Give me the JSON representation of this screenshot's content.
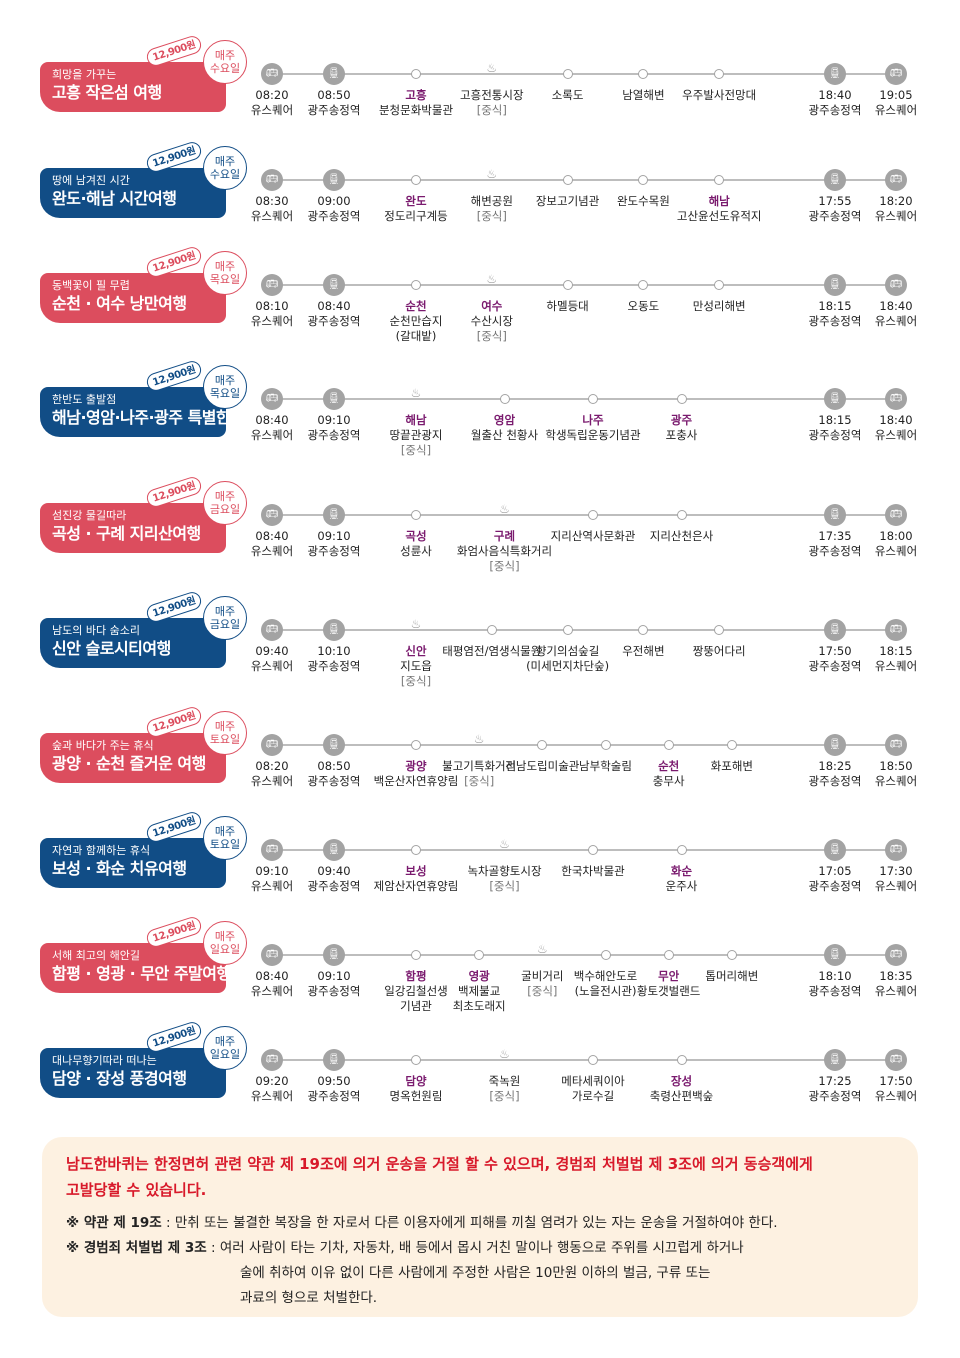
{
  "tours": [
    {
      "theme": "red",
      "subtitle": "희망을 가꾸는",
      "title": "고흥 작은섬 여행",
      "price": "12,900원",
      "day": [
        "매주",
        "수요일"
      ],
      "stops": [
        {
          "type": "bus",
          "lines": [
            "08:20",
            "유스퀘어"
          ]
        },
        {
          "type": "train",
          "lines": [
            "08:50",
            "광주송정역"
          ]
        },
        {
          "type": "dot",
          "highlight": "고흥",
          "lines": [
            "분청문화박물관"
          ]
        },
        {
          "type": "meal",
          "lines": [
            "고흥전통시장"
          ],
          "lunch": "[중식]"
        },
        {
          "type": "dot",
          "lines": [
            "소록도"
          ]
        },
        {
          "type": "dot",
          "lines": [
            "남열해변"
          ]
        },
        {
          "type": "dot",
          "lines": [
            "우주발사전망대"
          ]
        },
        {
          "type": "train",
          "lines": [
            "18:40",
            "광주송정역"
          ]
        },
        {
          "type": "bus",
          "lines": [
            "19:05",
            "유스퀘어"
          ]
        }
      ]
    },
    {
      "theme": "blue",
      "subtitle": "땅에 남겨진 시간",
      "title": "완도·해남 시간여행",
      "price": "12,900원",
      "day": [
        "매주",
        "수요일"
      ],
      "stops": [
        {
          "type": "bus",
          "lines": [
            "08:30",
            "유스퀘어"
          ]
        },
        {
          "type": "train",
          "lines": [
            "09:00",
            "광주송정역"
          ]
        },
        {
          "type": "dot",
          "highlight": "완도",
          "lines": [
            "정도리구계등"
          ]
        },
        {
          "type": "meal",
          "lines": [
            "해변공원"
          ],
          "lunch": "[중식]"
        },
        {
          "type": "dot",
          "lines": [
            "장보고기념관"
          ]
        },
        {
          "type": "dot",
          "lines": [
            "완도수목원"
          ]
        },
        {
          "type": "dot",
          "highlight": "해남",
          "lines": [
            "고산윤선도유적지"
          ]
        },
        {
          "type": "train",
          "lines": [
            "17:55",
            "광주송정역"
          ]
        },
        {
          "type": "bus",
          "lines": [
            "18:20",
            "유스퀘어"
          ]
        }
      ]
    },
    {
      "theme": "red",
      "subtitle": "동백꽃이 필 무렵",
      "title": "순천 · 여수 낭만여행",
      "price": "12,900원",
      "day": [
        "매주",
        "목요일"
      ],
      "stops": [
        {
          "type": "bus",
          "lines": [
            "08:10",
            "유스퀘어"
          ]
        },
        {
          "type": "train",
          "lines": [
            "08:40",
            "광주송정역"
          ]
        },
        {
          "type": "dot",
          "highlight": "순천",
          "lines": [
            "순천만습지",
            "(갈대밭)"
          ]
        },
        {
          "type": "meal",
          "highlight": "여수",
          "lines": [
            "수산시장"
          ],
          "lunch": "[중식]"
        },
        {
          "type": "dot",
          "lines": [
            "하멜등대"
          ]
        },
        {
          "type": "dot",
          "lines": [
            "오동도"
          ]
        },
        {
          "type": "dot",
          "lines": [
            "만성리해변"
          ]
        },
        {
          "type": "train",
          "lines": [
            "18:15",
            "광주송정역"
          ]
        },
        {
          "type": "bus",
          "lines": [
            "18:40",
            "유스퀘어"
          ]
        }
      ]
    },
    {
      "theme": "blue",
      "subtitle": "한반도 출발점",
      "title": "해남·영암·나주·광주 특별한여행",
      "price": "12,900원",
      "day": [
        "매주",
        "목요일"
      ],
      "stops": [
        {
          "type": "bus",
          "lines": [
            "08:40",
            "유스퀘어"
          ]
        },
        {
          "type": "train",
          "lines": [
            "09:10",
            "광주송정역"
          ]
        },
        {
          "type": "meal",
          "highlight": "해남",
          "lines": [
            "땅끝관광지"
          ],
          "lunch": "[중식]"
        },
        {
          "type": "dot",
          "highlight": "영암",
          "lines": [
            "월출산 천황사"
          ]
        },
        {
          "type": "dot",
          "highlight": "나주",
          "lines": [
            "학생독립운동기념관"
          ]
        },
        {
          "type": "dot",
          "highlight": "광주",
          "lines": [
            "포충사"
          ]
        },
        {
          "type": "train",
          "lines": [
            "18:15",
            "광주송정역"
          ]
        },
        {
          "type": "bus",
          "lines": [
            "18:40",
            "유스퀘어"
          ]
        }
      ]
    },
    {
      "theme": "red",
      "subtitle": "섬진강 물길따라",
      "title": "곡성 · 구례 지리산여행",
      "price": "12,900원",
      "day": [
        "매주",
        "금요일"
      ],
      "stops": [
        {
          "type": "bus",
          "lines": [
            "08:40",
            "유스퀘어"
          ]
        },
        {
          "type": "train",
          "lines": [
            "09:10",
            "광주송정역"
          ]
        },
        {
          "type": "dot",
          "highlight": "곡성",
          "lines": [
            "성륜사"
          ]
        },
        {
          "type": "meal",
          "highlight": "구례",
          "lines": [
            "화엄사음식특화거리"
          ],
          "lunch": "[중식]"
        },
        {
          "type": "dot",
          "lines": [
            "지리산역사문화관"
          ]
        },
        {
          "type": "dot",
          "lines": [
            "지리산천은사"
          ]
        },
        {
          "type": "train",
          "lines": [
            "17:35",
            "광주송정역"
          ]
        },
        {
          "type": "bus",
          "lines": [
            "18:00",
            "유스퀘어"
          ]
        }
      ]
    },
    {
      "theme": "blue",
      "subtitle": "남도의 바다 숨소리",
      "title": "신안 슬로시티여행",
      "price": "12,900원",
      "day": [
        "매주",
        "금요일"
      ],
      "stops": [
        {
          "type": "bus",
          "lines": [
            "09:40",
            "유스퀘어"
          ]
        },
        {
          "type": "train",
          "lines": [
            "10:10",
            "광주송정역"
          ]
        },
        {
          "type": "meal",
          "highlight": "신안",
          "lines": [
            "지도읍"
          ],
          "lunch": "[중식]"
        },
        {
          "type": "dot",
          "lines": [
            "태평염전/염생식물원"
          ]
        },
        {
          "type": "dot",
          "lines": [
            "향기의섬숲길",
            "(미세먼지차단숲)"
          ]
        },
        {
          "type": "dot",
          "lines": [
            "우전해변"
          ]
        },
        {
          "type": "dot",
          "lines": [
            "짱뚱어다리"
          ]
        },
        {
          "type": "train",
          "lines": [
            "17:50",
            "광주송정역"
          ]
        },
        {
          "type": "bus",
          "lines": [
            "18:15",
            "유스퀘어"
          ]
        }
      ]
    },
    {
      "theme": "red",
      "subtitle": "숲과 바다가 주는 휴식",
      "title": "광양 · 순천 즐거운 여행",
      "price": "12,900원",
      "day": [
        "매주",
        "토요일"
      ],
      "stops": [
        {
          "type": "bus",
          "lines": [
            "08:20",
            "유스퀘어"
          ]
        },
        {
          "type": "train",
          "lines": [
            "08:50",
            "광주송정역"
          ]
        },
        {
          "type": "dot",
          "highlight": "광양",
          "lines": [
            "백운산자연휴양림"
          ]
        },
        {
          "type": "meal",
          "lines": [
            "불고기특화거리"
          ],
          "lunch": "[중식]"
        },
        {
          "type": "dot",
          "lines": [
            "전남도립미술관"
          ]
        },
        {
          "type": "dot",
          "lines": [
            "남부학술림"
          ]
        },
        {
          "type": "dot",
          "highlight": "순천",
          "lines": [
            "충무사"
          ]
        },
        {
          "type": "dot",
          "lines": [
            "화포해변"
          ]
        },
        {
          "type": "train",
          "lines": [
            "18:25",
            "광주송정역"
          ]
        },
        {
          "type": "bus",
          "lines": [
            "18:50",
            "유스퀘어"
          ]
        }
      ]
    },
    {
      "theme": "blue",
      "subtitle": "자연과 함께하는 휴식",
      "title": "보성 · 화순 치유여행",
      "price": "12,900원",
      "day": [
        "매주",
        "토요일"
      ],
      "stops": [
        {
          "type": "bus",
          "lines": [
            "09:10",
            "유스퀘어"
          ]
        },
        {
          "type": "train",
          "lines": [
            "09:40",
            "광주송정역"
          ]
        },
        {
          "type": "dot",
          "highlight": "보성",
          "lines": [
            "제암산자연휴양림"
          ]
        },
        {
          "type": "meal",
          "lines": [
            "녹차골향토시장"
          ],
          "lunch": "[중식]"
        },
        {
          "type": "dot",
          "lines": [
            "한국차박물관"
          ]
        },
        {
          "type": "dot",
          "highlight": "화순",
          "lines": [
            "운주사"
          ]
        },
        {
          "type": "train",
          "lines": [
            "17:05",
            "광주송정역"
          ]
        },
        {
          "type": "bus",
          "lines": [
            "17:30",
            "유스퀘어"
          ]
        }
      ]
    },
    {
      "theme": "red",
      "subtitle": "서해 최고의 해안길",
      "title": "함평 · 영광 · 무안 주말여행",
      "price": "12,900원",
      "day": [
        "매주",
        "일요일"
      ],
      "stops": [
        {
          "type": "bus",
          "lines": [
            "08:40",
            "유스퀘어"
          ]
        },
        {
          "type": "train",
          "lines": [
            "09:10",
            "광주송정역"
          ]
        },
        {
          "type": "dot",
          "highlight": "함평",
          "lines": [
            "일강김철선생",
            "기념관"
          ]
        },
        {
          "type": "dot",
          "highlight": "영광",
          "lines": [
            "백제불교",
            "최초도래지"
          ]
        },
        {
          "type": "meal",
          "lines": [
            "굴비거리"
          ],
          "lunch": "[중식]"
        },
        {
          "type": "dot",
          "lines": [
            "백수해안도로",
            "(노을전시관)"
          ]
        },
        {
          "type": "dot",
          "highlight": "무안",
          "lines": [
            "황토갯벌랜드"
          ]
        },
        {
          "type": "dot",
          "lines": [
            "톱머리해변"
          ]
        },
        {
          "type": "train",
          "lines": [
            "18:10",
            "광주송정역"
          ]
        },
        {
          "type": "bus",
          "lines": [
            "18:35",
            "유스퀘어"
          ]
        }
      ]
    },
    {
      "theme": "blue",
      "subtitle": "대나무향기따라 떠나는",
      "title": "담양 · 장성 풍경여행",
      "price": "12,900원",
      "day": [
        "매주",
        "일요일"
      ],
      "stops": [
        {
          "type": "bus",
          "lines": [
            "09:20",
            "유스퀘어"
          ]
        },
        {
          "type": "train",
          "lines": [
            "09:50",
            "광주송정역"
          ]
        },
        {
          "type": "dot",
          "highlight": "담양",
          "lines": [
            "명옥헌원림"
          ]
        },
        {
          "type": "meal",
          "lines": [
            "죽녹원"
          ],
          "lunch": "[중식]"
        },
        {
          "type": "dot",
          "lines": [
            "메타세쿼이아",
            "가로수길"
          ]
        },
        {
          "type": "dot",
          "highlight": "장성",
          "lines": [
            "축령산편백숲"
          ]
        },
        {
          "type": "train",
          "lines": [
            "17:25",
            "광주송정역"
          ]
        },
        {
          "type": "bus",
          "lines": [
            "17:50",
            "유스퀘어"
          ]
        }
      ]
    }
  ],
  "notice": {
    "warning_line1": "남도한바퀴는 한정면허 관련 약관 제 19조에 의거 운송을 거절 할 수 있으며, 경범죄 처벌법 제 3조에 의거 동승객에게",
    "warning_line2": "고발당할 수 있습니다.",
    "law1_label": "※ 약관 제 19조",
    "law1_text": " : 만취 또는 불결한 복장을 한 자로서 다른 이용자에게 피해를 끼칠 염려가 있는 자는 운송을 거절하여야 한다.",
    "law2_label": "※ 경범죄 처벌법 제 3조",
    "law2_text1": " : 여러 사람이 타는 기차, 자동차, 배 등에서 몹시 거친 말이나 행동으로 주위를 시끄럽게 하거나",
    "law2_text2": "술에 취하여 이유 없이 다른 사람에게  주정한 사람은 10만원 이하의 벌금, 구류 또는",
    "law2_text3": "과료의 형으로 처벌한다."
  },
  "colors": {
    "red": "#dc4d5e",
    "blue": "#114d86",
    "highlight": "#7a1a6e",
    "warning": "#d8192a",
    "notice_bg": "#fdf1e1"
  },
  "icons": {
    "bus": "bus-icon",
    "train": "train-icon",
    "meal": "meal-bowl-icon",
    "dot": "stop-dot-icon"
  }
}
